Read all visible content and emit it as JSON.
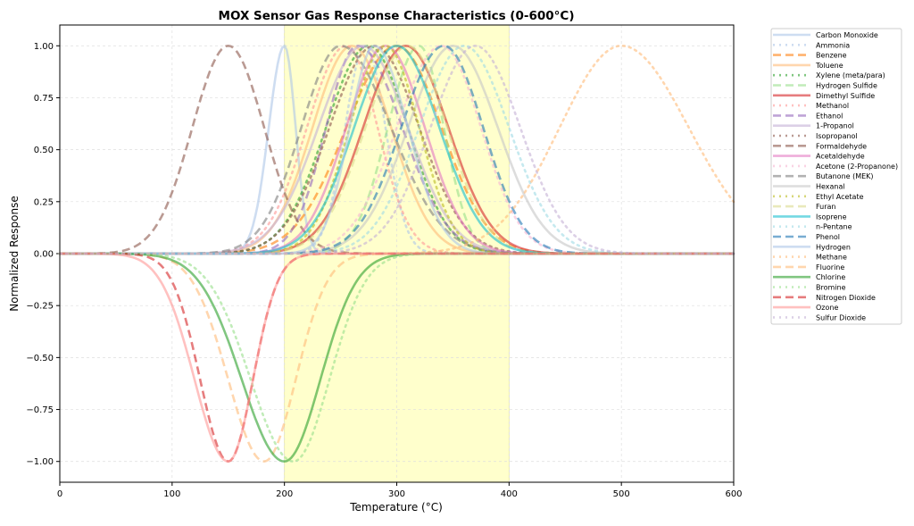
{
  "chart_data": {
    "type": "line",
    "title": "MOX Sensor Gas Response Characteristics (0-600°C)",
    "xlabel": "Temperature (°C)",
    "ylabel": "Normalized Response",
    "xlim": [
      0,
      600
    ],
    "ylim": [
      -1.1,
      1.1
    ],
    "xticks": [
      0,
      100,
      200,
      300,
      400,
      500,
      600
    ],
    "yticks": [
      -1.0,
      -0.75,
      -0.5,
      -0.25,
      0.0,
      0.25,
      0.5,
      0.75,
      1.0
    ],
    "grid": true,
    "legend_placement": "outside-right",
    "highlight_span": {
      "from": 200,
      "to": 400,
      "color": "#ffffcc"
    },
    "model": "gaussian peak: amplitude, center, left width, right width",
    "series": [
      {
        "name": "Carbon Monoxide",
        "color": "#aec7e8",
        "style": "solid",
        "amp": 1,
        "center": 200,
        "wl": 14,
        "wr": 10
      },
      {
        "name": "Ammonia",
        "color": "#aec7e8",
        "style": "dotted",
        "amp": 1,
        "center": 272,
        "wl": 18,
        "wr": 18
      },
      {
        "name": "Benzene",
        "color": "#ff7f0e",
        "style": "dashed",
        "amp": 1,
        "center": 300,
        "wl": 45,
        "wr": 40
      },
      {
        "name": "Toluene",
        "color": "#ffbb78",
        "style": "solid",
        "amp": 1,
        "center": 260,
        "wl": 35,
        "wr": 35
      },
      {
        "name": "Xylene (meta/para)",
        "color": "#2ca02c",
        "style": "dotted",
        "amp": 1,
        "center": 275,
        "wl": 38,
        "wr": 35
      },
      {
        "name": "Hydrogen Sulfide",
        "color": "#98df8a",
        "style": "dashed",
        "amp": 1,
        "center": 320,
        "wl": 28,
        "wr": 22
      },
      {
        "name": "Dimethyl Sulfide",
        "color": "#d62728",
        "style": "solid",
        "amp": 1,
        "center": 308,
        "wl": 38,
        "wr": 38
      },
      {
        "name": "Methanol",
        "color": "#ff9896",
        "style": "dotted",
        "amp": 1,
        "center": 255,
        "wl": 35,
        "wr": 28
      },
      {
        "name": "Ethanol",
        "color": "#9467bd",
        "style": "dashed",
        "amp": 1,
        "center": 265,
        "wl": 28,
        "wr": 40
      },
      {
        "name": "1-Propanol",
        "color": "#c5b0d5",
        "style": "solid",
        "amp": 1,
        "center": 270,
        "wl": 40,
        "wr": 40
      },
      {
        "name": "Isopropanol",
        "color": "#8c564b",
        "style": "dotted",
        "amp": 1,
        "center": 280,
        "wl": 40,
        "wr": 40
      },
      {
        "name": "Formaldehyde",
        "color": "#8c564b",
        "style": "dashed",
        "amp": 1,
        "center": 150,
        "wl": 32,
        "wr": 32
      },
      {
        "name": "Acetaldehyde",
        "color": "#e377c2",
        "style": "solid",
        "amp": 1,
        "center": 290,
        "wl": 35,
        "wr": 35
      },
      {
        "name": "Acetone (2-Propanone)",
        "color": "#f7b6d2",
        "style": "dotted",
        "amp": 1,
        "center": 340,
        "wl": 40,
        "wr": 35
      },
      {
        "name": "Butanone (MEK)",
        "color": "#7f7f7f",
        "style": "dashed",
        "amp": 1,
        "center": 250,
        "wl": 35,
        "wr": 45
      },
      {
        "name": "Hexanal",
        "color": "#c7c7c7",
        "style": "solid",
        "amp": 1,
        "center": 350,
        "wl": 40,
        "wr": 40
      },
      {
        "name": "Ethyl Acetate",
        "color": "#bcbd22",
        "style": "dotted",
        "amp": 1,
        "center": 290,
        "wl": 32,
        "wr": 30
      },
      {
        "name": "Furan",
        "color": "#dbdb8d",
        "style": "dashed",
        "amp": 1,
        "center": 310,
        "wl": 38,
        "wr": 35
      },
      {
        "name": "Isoprene",
        "color": "#17becf",
        "style": "solid",
        "amp": 1,
        "center": 300,
        "wl": 38,
        "wr": 38
      },
      {
        "name": "n-Pentane",
        "color": "#9edae5",
        "style": "dotted",
        "amp": 1,
        "center": 360,
        "wl": 40,
        "wr": 40
      },
      {
        "name": "Phenol",
        "color": "#1f77b4",
        "style": "dashed",
        "amp": 1,
        "center": 342,
        "wl": 38,
        "wr": 35
      },
      {
        "name": "Hydrogen",
        "color": "#aec7e8",
        "style": "solid",
        "amp": 1,
        "center": 280,
        "wl": 22,
        "wr": 30
      },
      {
        "name": "Methane",
        "color": "#ffbb78",
        "style": "dotted",
        "amp": 1,
        "center": 500,
        "wl": 55,
        "wr": 60
      },
      {
        "name": "Fluorine",
        "color": "#ffbb78",
        "style": "dashed",
        "amp": -1,
        "center": 182,
        "wl": 32,
        "wr": 28
      },
      {
        "name": "Chlorine",
        "color": "#2ca02c",
        "style": "solid",
        "amp": -1,
        "center": 200,
        "wl": 38,
        "wr": 32
      },
      {
        "name": "Bromine",
        "color": "#98df8a",
        "style": "dotted",
        "amp": -1,
        "center": 208,
        "wl": 38,
        "wr": 32
      },
      {
        "name": "Nitrogen Dioxide",
        "color": "#d62728",
        "style": "dashed",
        "amp": -1,
        "center": 150,
        "wl": 25,
        "wr": 22
      },
      {
        "name": "Ozone",
        "color": "#ff9896",
        "style": "solid",
        "amp": -1,
        "center": 150,
        "wl": 30,
        "wr": 22
      },
      {
        "name": "Sulfur Dioxide",
        "color": "#c5b0d5",
        "style": "dotted",
        "amp": 1,
        "center": 370,
        "wl": 40,
        "wr": 40
      }
    ]
  }
}
